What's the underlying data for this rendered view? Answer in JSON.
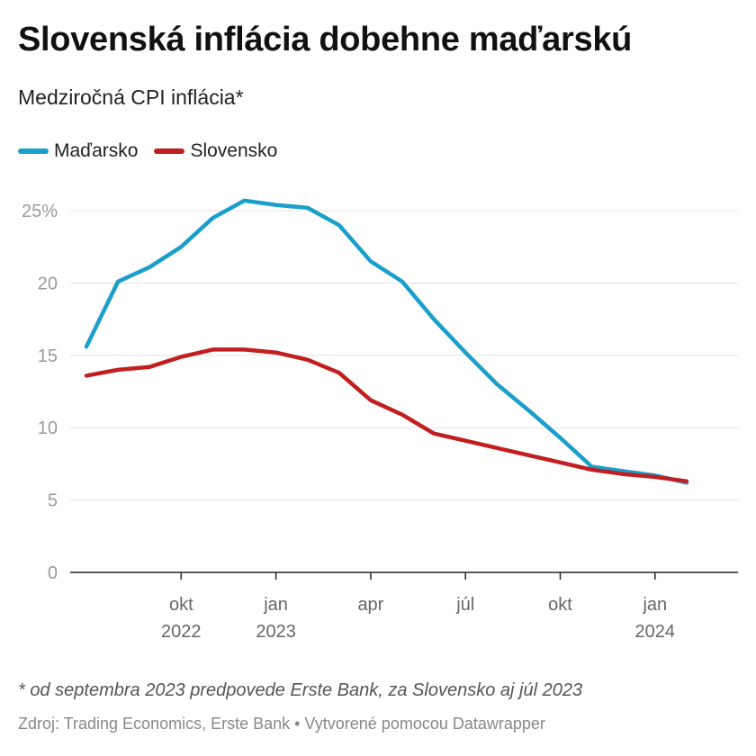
{
  "header": {
    "title": "Slovenská inflácia dobehne maďarskú",
    "subtitle": "Medziročná CPI inflácia*"
  },
  "footer": {
    "note": "* od septembra 2023 predpovede Erste Bank, za Slovensko aj júl 2023",
    "source": "Zdroj: Trading Economics, Erste Bank • Vytvorené pomocou Datawrapper"
  },
  "colors": {
    "madarsko": "#1a9fcb",
    "slovensko": "#c11f1f",
    "grid": "#e3e3e3",
    "axis": "#222222"
  },
  "chart_data": {
    "type": "line",
    "title": "Slovenská inflácia dobehne maďarskú",
    "subtitle": "Medziročná CPI inflácia*",
    "x": [
      "2022-07",
      "2022-08",
      "2022-09",
      "2022-10",
      "2022-11",
      "2022-12",
      "2023-01",
      "2023-02",
      "2023-03",
      "2023-04",
      "2023-05",
      "2023-06",
      "2023-07",
      "2023-08",
      "2023-09",
      "2023-10",
      "2023-11",
      "2023-12",
      "2024-01",
      "2024-02",
      "2024-03"
    ],
    "series": [
      {
        "name": "Maďarsko",
        "color": "#1a9fcb",
        "values": [
          15.6,
          20.1,
          21.1,
          22.5,
          24.5,
          25.7,
          25.4,
          25.2,
          24.0,
          21.5,
          20.1,
          17.5,
          15.2,
          13.0,
          11.2,
          9.3,
          7.3,
          7.0,
          6.7,
          6.2,
          null
        ]
      },
      {
        "name": "Slovensko",
        "color": "#c11f1f",
        "values": [
          13.6,
          14.0,
          14.2,
          14.9,
          15.4,
          15.4,
          15.2,
          14.7,
          13.8,
          11.9,
          10.9,
          9.6,
          9.1,
          8.6,
          8.1,
          7.6,
          7.1,
          6.8,
          6.6,
          6.3,
          null
        ]
      }
    ],
    "y_ticks": [
      "0",
      "5",
      "10",
      "15",
      "20",
      "25%"
    ],
    "y_tick_values": [
      0,
      5,
      10,
      15,
      20,
      25
    ],
    "ylim": [
      0,
      26.5
    ],
    "x_ticks": [
      {
        "date": "2022-10",
        "label": "okt",
        "year": "2022"
      },
      {
        "date": "2023-01",
        "label": "jan",
        "year": "2023"
      },
      {
        "date": "2023-04",
        "label": "apr",
        "year": ""
      },
      {
        "date": "2023-07",
        "label": "júl",
        "year": ""
      },
      {
        "date": "2023-10",
        "label": "okt",
        "year": ""
      },
      {
        "date": "2024-01",
        "label": "jan",
        "year": "2024"
      }
    ],
    "grid": "horizontal",
    "legend_position": "top-left"
  }
}
